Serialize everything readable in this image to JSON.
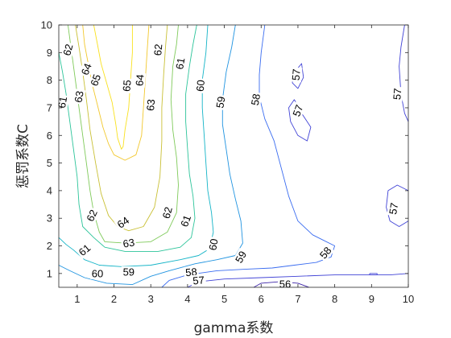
{
  "chart_data": {
    "type": "contour",
    "title": "",
    "xlabel": "gamma系数",
    "ylabel": "惩罚系数C",
    "xlim": [
      0.5,
      10
    ],
    "ylim": [
      0.5,
      10
    ],
    "xticks": [
      "1",
      "2",
      "3",
      "4",
      "5",
      "6",
      "7",
      "8",
      "9",
      "10"
    ],
    "yticks": [
      "1",
      "2",
      "3",
      "4",
      "5",
      "6",
      "7",
      "8",
      "9",
      "10"
    ],
    "grid": false,
    "colormap": "parula",
    "level_colors": {
      "56": "#3e26a8",
      "57": "#4143d6",
      "58": "#3a6cf0",
      "59": "#1f93e0",
      "60": "#14b4c7",
      "61": "#2cc49a",
      "62": "#7fca5a",
      "63": "#c9c035",
      "64": "#f2c82e",
      "65": "#f9e11e"
    },
    "contours": [
      {
        "level": 65,
        "points": [
          [
            1.45,
            10
          ],
          [
            1.55,
            9.3
          ],
          [
            1.65,
            8.6
          ],
          [
            1.8,
            7.9
          ],
          [
            1.95,
            7.2
          ],
          [
            2.05,
            6.4
          ],
          [
            2.1,
            5.9
          ],
          [
            2.2,
            5.5
          ],
          [
            2.25,
            5.6
          ],
          [
            2.3,
            6.2
          ],
          [
            2.4,
            7.0
          ],
          [
            2.45,
            8.0
          ],
          [
            2.5,
            9.0
          ],
          [
            2.5,
            10
          ]
        ]
      },
      {
        "level": 64,
        "points": [
          [
            1.15,
            10
          ],
          [
            1.2,
            9.3
          ],
          [
            1.3,
            8.6
          ],
          [
            1.4,
            7.9
          ],
          [
            1.55,
            7.1
          ],
          [
            1.7,
            6.3
          ],
          [
            1.85,
            5.7
          ],
          [
            2.0,
            5.3
          ],
          [
            2.3,
            5.1
          ],
          [
            2.6,
            5.3
          ],
          [
            2.75,
            6.0
          ],
          [
            2.8,
            7.0
          ],
          [
            2.85,
            8.0
          ],
          [
            2.9,
            9.0
          ],
          [
            2.95,
            10
          ]
        ]
      },
      {
        "level": 63,
        "points": [
          [
            0.95,
            10
          ],
          [
            1.05,
            9.2
          ],
          [
            1.15,
            8.3
          ],
          [
            1.25,
            7.3
          ],
          [
            1.35,
            6.2
          ],
          [
            1.5,
            5.0
          ],
          [
            1.65,
            3.9
          ],
          [
            1.85,
            3.1
          ],
          [
            2.1,
            2.7
          ],
          [
            2.4,
            2.55
          ],
          [
            2.8,
            2.7
          ],
          [
            3.1,
            3.4
          ],
          [
            3.25,
            4.5
          ],
          [
            3.3,
            5.8
          ],
          [
            3.3,
            7.0
          ],
          [
            3.35,
            8.2
          ],
          [
            3.4,
            9.2
          ],
          [
            3.45,
            10
          ]
        ]
      },
      {
        "level": 62,
        "points": [
          [
            0.75,
            10
          ],
          [
            0.85,
            9.0
          ],
          [
            0.95,
            8.0
          ],
          [
            1.05,
            7.0
          ],
          [
            1.15,
            6.0
          ],
          [
            1.25,
            5.0
          ],
          [
            1.35,
            4.0
          ],
          [
            1.45,
            3.2
          ],
          [
            1.6,
            2.5
          ],
          [
            1.75,
            2.15
          ],
          [
            2.3,
            2.1
          ],
          [
            3.0,
            2.15
          ],
          [
            3.45,
            2.5
          ],
          [
            3.7,
            3.2
          ],
          [
            3.75,
            4.2
          ],
          [
            3.7,
            5.2
          ],
          [
            3.6,
            6.2
          ],
          [
            3.55,
            7.3
          ],
          [
            3.6,
            8.5
          ],
          [
            3.7,
            9.3
          ],
          [
            3.75,
            10
          ]
        ]
      },
      {
        "level": 61,
        "points": [
          [
            0.5,
            9.0
          ],
          [
            0.6,
            8.3
          ],
          [
            0.7,
            7.5
          ],
          [
            0.8,
            6.5
          ],
          [
            0.9,
            5.5
          ],
          [
            1.0,
            4.5
          ],
          [
            1.05,
            3.5
          ],
          [
            1.15,
            2.7
          ],
          [
            1.45,
            2.3
          ],
          [
            1.75,
            1.95
          ],
          [
            2.3,
            1.8
          ],
          [
            3.2,
            1.8
          ],
          [
            3.8,
            1.95
          ],
          [
            4.1,
            2.3
          ],
          [
            4.2,
            3.0
          ],
          [
            4.15,
            3.8
          ],
          [
            4.05,
            4.6
          ],
          [
            4.0,
            5.5
          ],
          [
            3.95,
            6.5
          ],
          [
            3.95,
            7.5
          ],
          [
            4.05,
            8.5
          ],
          [
            4.15,
            9.3
          ],
          [
            4.25,
            10
          ]
        ]
      },
      {
        "level": 60,
        "points": [
          [
            0.5,
            2.3
          ],
          [
            0.7,
            2.05
          ],
          [
            0.9,
            1.85
          ],
          [
            1.2,
            1.5
          ],
          [
            1.6,
            1.3
          ],
          [
            2.2,
            1.25
          ],
          [
            3.0,
            1.3
          ],
          [
            3.8,
            1.5
          ],
          [
            4.3,
            1.65
          ],
          [
            4.6,
            1.9
          ],
          [
            4.7,
            2.5
          ],
          [
            4.65,
            3.2
          ],
          [
            4.55,
            4.0
          ],
          [
            4.5,
            5.0
          ],
          [
            4.45,
            6.0
          ],
          [
            4.4,
            7.0
          ],
          [
            4.4,
            8.0
          ],
          [
            4.5,
            9.0
          ],
          [
            4.55,
            10
          ]
        ]
      },
      {
        "level": 59,
        "points": [
          [
            0.5,
            1.3
          ],
          [
            0.8,
            1.1
          ],
          [
            1.2,
            0.85
          ],
          [
            1.8,
            0.65
          ],
          [
            2.5,
            0.6
          ],
          [
            3.0,
            0.9
          ],
          [
            3.5,
            1.1
          ],
          [
            4.2,
            1.35
          ],
          [
            4.8,
            1.5
          ],
          [
            5.3,
            1.65
          ],
          [
            5.5,
            2.1
          ],
          [
            5.45,
            2.9
          ],
          [
            5.3,
            3.7
          ],
          [
            5.15,
            4.6
          ],
          [
            5.05,
            5.5
          ],
          [
            4.95,
            6.4
          ],
          [
            4.95,
            7.3
          ],
          [
            5.05,
            8.3
          ],
          [
            5.2,
            9.2
          ],
          [
            5.3,
            10
          ]
        ]
      },
      {
        "level": 58,
        "points": [
          [
            3.3,
            0.5
          ],
          [
            3.5,
            0.75
          ],
          [
            4.0,
            0.95
          ],
          [
            4.8,
            1.1
          ],
          [
            5.5,
            1.15
          ],
          [
            6.3,
            1.2
          ],
          [
            6.9,
            1.3
          ],
          [
            7.5,
            1.4
          ],
          [
            7.9,
            1.6
          ],
          [
            8.0,
            2.0
          ],
          [
            7.7,
            2.2
          ],
          [
            7.4,
            2.4
          ],
          [
            7.0,
            2.9
          ],
          [
            6.75,
            3.8
          ],
          [
            6.55,
            4.8
          ],
          [
            6.35,
            5.8
          ],
          [
            6.1,
            6.6
          ],
          [
            5.95,
            7.4
          ],
          [
            5.95,
            8.2
          ],
          [
            6.0,
            9.0
          ],
          [
            6.1,
            10
          ]
        ]
      },
      {
        "level": 57,
        "points": [
          [
            4.0,
            0.5
          ],
          [
            4.3,
            0.7
          ],
          [
            5.0,
            0.8
          ],
          [
            6.0,
            0.85
          ],
          [
            7.0,
            0.9
          ],
          [
            8.0,
            0.95
          ],
          [
            9.0,
            0.95
          ],
          [
            9.5,
            0.95
          ],
          [
            10,
            1.0
          ]
        ]
      },
      {
        "level": 57,
        "points": [
          [
            6.85,
            8.2
          ],
          [
            7.1,
            8.6
          ],
          [
            7.15,
            8.1
          ],
          [
            7.0,
            7.7
          ],
          [
            6.85,
            7.9
          ],
          [
            6.85,
            8.2
          ]
        ]
      },
      {
        "level": 57,
        "points": [
          [
            6.9,
            7.3
          ],
          [
            7.1,
            6.8
          ],
          [
            7.35,
            6.3
          ],
          [
            7.25,
            5.8
          ],
          [
            7.0,
            6.0
          ],
          [
            6.8,
            6.5
          ],
          [
            6.75,
            7.0
          ],
          [
            6.9,
            7.3
          ]
        ]
      },
      {
        "level": 57,
        "points": [
          [
            9.9,
            10
          ],
          [
            9.8,
            9.2
          ],
          [
            9.75,
            8.5
          ],
          [
            9.8,
            7.5
          ],
          [
            9.9,
            6.8
          ],
          [
            10,
            6.5
          ]
        ]
      },
      {
        "level": 57,
        "points": [
          [
            10,
            4.0
          ],
          [
            9.7,
            4.2
          ],
          [
            9.45,
            4.0
          ],
          [
            9.4,
            3.4
          ],
          [
            9.5,
            2.9
          ],
          [
            9.75,
            2.7
          ],
          [
            10,
            2.9
          ]
        ]
      },
      {
        "level": 57,
        "points": [
          [
            8.95,
            1.0
          ],
          [
            9.15,
            1.0
          ],
          [
            9.15,
            0.95
          ],
          [
            8.95,
            0.95
          ],
          [
            8.95,
            1.0
          ]
        ]
      },
      {
        "level": 56,
        "points": [
          [
            5.8,
            0.5
          ],
          [
            6.0,
            0.65
          ],
          [
            6.5,
            0.7
          ],
          [
            7.0,
            0.65
          ],
          [
            7.3,
            0.5
          ]
        ]
      }
    ],
    "labels": [
      {
        "text": "62",
        "x": 0.75,
        "y": 9.1,
        "angle": -75
      },
      {
        "text": "64",
        "x": 1.25,
        "y": 8.4,
        "angle": -70
      },
      {
        "text": "65",
        "x": 1.5,
        "y": 8.0,
        "angle": -70
      },
      {
        "text": "61",
        "x": 0.6,
        "y": 7.2,
        "angle": -80
      },
      {
        "text": "63",
        "x": 1.05,
        "y": 7.4,
        "angle": -80
      },
      {
        "text": "65",
        "x": 2.35,
        "y": 7.8,
        "angle": -85
      },
      {
        "text": "64",
        "x": 2.7,
        "y": 8.0,
        "angle": -85
      },
      {
        "text": "62",
        "x": 3.2,
        "y": 9.1,
        "angle": -85
      },
      {
        "text": "61",
        "x": 3.8,
        "y": 8.6,
        "angle": -80
      },
      {
        "text": "63",
        "x": 3.0,
        "y": 7.1,
        "angle": -85
      },
      {
        "text": "60",
        "x": 4.35,
        "y": 7.8,
        "angle": -85
      },
      {
        "text": "59",
        "x": 4.9,
        "y": 7.2,
        "angle": -80
      },
      {
        "text": "58",
        "x": 5.85,
        "y": 7.3,
        "angle": -80
      },
      {
        "text": "57",
        "x": 6.95,
        "y": 8.2,
        "angle": -85
      },
      {
        "text": "57",
        "x": 7.0,
        "y": 6.9,
        "angle": -70
      },
      {
        "text": "57",
        "x": 9.7,
        "y": 7.5,
        "angle": -85
      },
      {
        "text": "62",
        "x": 1.4,
        "y": 3.1,
        "angle": -65
      },
      {
        "text": "64",
        "x": 2.25,
        "y": 2.85,
        "angle": -35
      },
      {
        "text": "63",
        "x": 2.4,
        "y": 2.1,
        "angle": -10
      },
      {
        "text": "62",
        "x": 3.45,
        "y": 3.2,
        "angle": -75
      },
      {
        "text": "61",
        "x": 3.95,
        "y": 2.9,
        "angle": -70
      },
      {
        "text": "60",
        "x": 4.7,
        "y": 2.05,
        "angle": -80
      },
      {
        "text": "61",
        "x": 1.2,
        "y": 1.85,
        "angle": -40
      },
      {
        "text": "60",
        "x": 1.55,
        "y": 1.0,
        "angle": 0
      },
      {
        "text": "59",
        "x": 2.4,
        "y": 1.05,
        "angle": 0
      },
      {
        "text": "59",
        "x": 5.45,
        "y": 1.6,
        "angle": -60
      },
      {
        "text": "58",
        "x": 7.75,
        "y": 1.75,
        "angle": -50
      },
      {
        "text": "58",
        "x": 4.1,
        "y": 1.05,
        "angle": -5
      },
      {
        "text": "57",
        "x": 4.3,
        "y": 0.75,
        "angle": -5
      },
      {
        "text": "56",
        "x": 6.65,
        "y": 0.62,
        "angle": 0
      },
      {
        "text": "57",
        "x": 9.6,
        "y": 3.35,
        "angle": -80
      }
    ]
  }
}
